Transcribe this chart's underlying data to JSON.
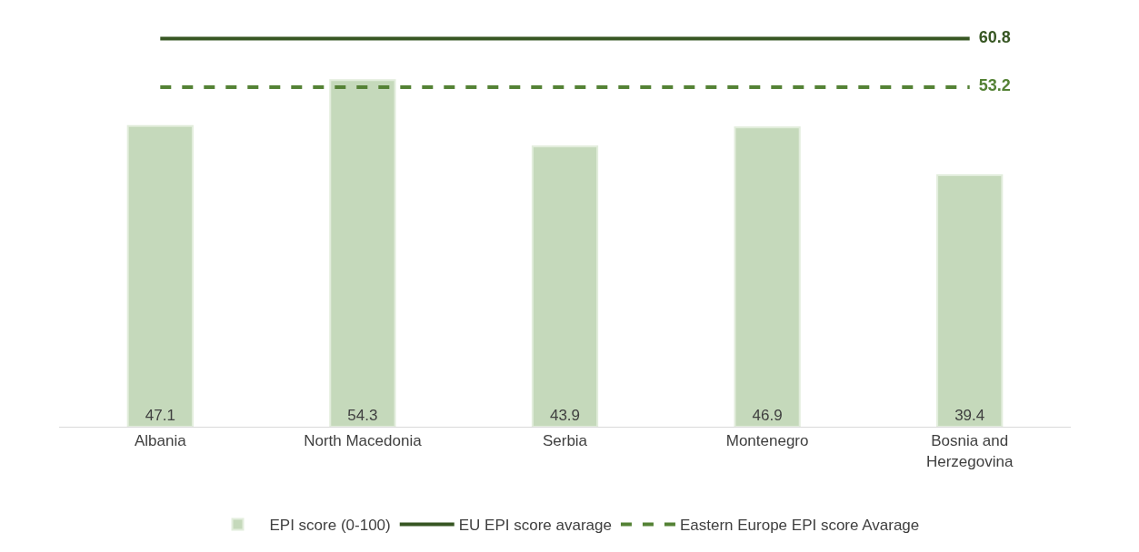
{
  "chart_data": {
    "type": "bar",
    "categories": [
      "Albania",
      "North Macedonia",
      "Serbia",
      "Montenegro",
      "Bosnia and Herzegovina"
    ],
    "series": [
      {
        "name": "EPI score (0-100)",
        "color": "#c5d9bb",
        "values": [
          47.1,
          54.3,
          43.9,
          46.9,
          39.4
        ],
        "data_labels": true
      },
      {
        "name": "EU EPI score avarage",
        "type": "line",
        "color": "#375623",
        "line_style": "solid",
        "values": [
          60.8,
          60.8,
          60.8,
          60.8,
          60.8
        ],
        "value_labels": [
          null,
          null,
          null,
          null,
          "60.8"
        ]
      },
      {
        "name": "Eastern Europe EPI score Avarage",
        "type": "line",
        "color": "#548235",
        "line_style": "dashed",
        "values": [
          53.2,
          53.2,
          53.2,
          53.2,
          53.2
        ],
        "value_labels": [
          null,
          null,
          null,
          null,
          "53.2"
        ]
      }
    ],
    "tick_labels": "x",
    "legend": "bottom",
    "marker": "none"
  }
}
